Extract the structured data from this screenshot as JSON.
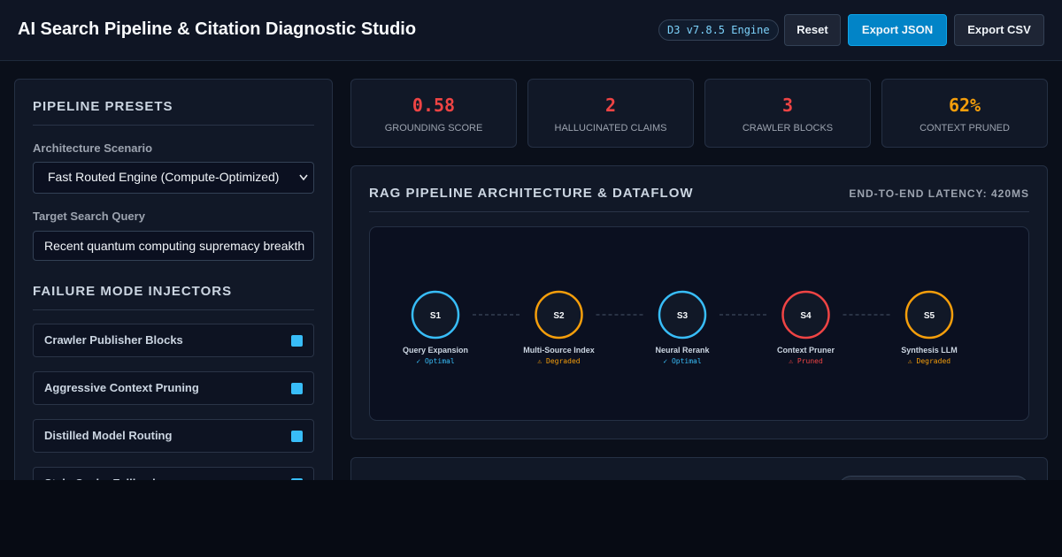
{
  "header": {
    "title": "AI Search Pipeline & Citation Diagnostic Studio",
    "badge": "D3 v7.8.5 Engine",
    "buttons": [
      "Reset",
      "Export JSON",
      "Export CSV"
    ]
  },
  "sidebar": {
    "presets_title": "PIPELINE PRESETS",
    "scenario_label": "Architecture Scenario",
    "scenario_value": "Fast Routed Engine (Compute-Optimized)",
    "query_label": "Target Search Query",
    "query_value": "Recent quantum computing supremacy breakth",
    "injectors_title": "FAILURE MODE INJECTORS",
    "injectors": [
      {
        "label": "Crawler Publisher Blocks",
        "checked": true
      },
      {
        "label": "Aggressive Context Pruning",
        "checked": true
      },
      {
        "label": "Distilled Model Routing",
        "checked": true
      },
      {
        "label": "Stale Cache Fallback",
        "checked": true
      }
    ]
  },
  "metrics": [
    {
      "value": "0.58",
      "label": "GROUNDING SCORE",
      "color": "#ef4444"
    },
    {
      "value": "2",
      "label": "HALLUCINATED CLAIMS",
      "color": "#ef4444"
    },
    {
      "value": "3",
      "label": "CRAWLER BLOCKS",
      "color": "#ef4444"
    },
    {
      "value": "62%",
      "label": "CONTEXT PRUNED",
      "color": "#f59e0b"
    }
  ],
  "pipeline": {
    "title": "RAG PIPELINE ARCHITECTURE & DATAFLOW",
    "latency": "END-TO-END LATENCY: 420MS",
    "nodes": [
      {
        "id": "S1",
        "label": "Query Expansion",
        "status": "✓ Optimal",
        "color": "#38bdf8"
      },
      {
        "id": "S2",
        "label": "Multi-Source Index",
        "status": "⚠ Degraded",
        "color": "#f59e0b"
      },
      {
        "id": "S3",
        "label": "Neural Rerank",
        "status": "✓ Optimal",
        "color": "#38bdf8"
      },
      {
        "id": "S4",
        "label": "Context Pruner",
        "status": "⚠ Pruned",
        "color": "#ef4444"
      },
      {
        "id": "S5",
        "label": "Synthesis LLM",
        "status": "⚠ Degraded",
        "color": "#f59e0b"
      }
    ]
  }
}
